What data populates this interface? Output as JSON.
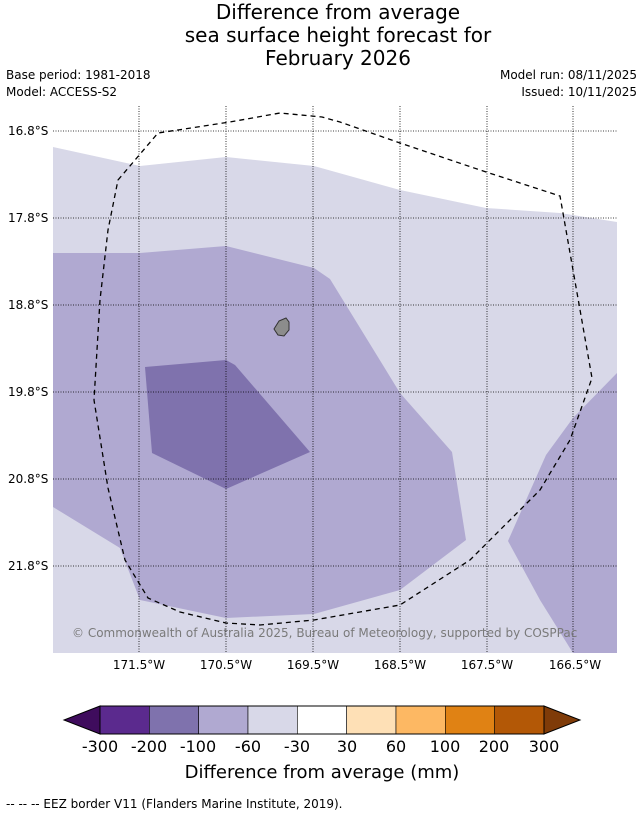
{
  "title": {
    "line1": "Difference from average",
    "line2": "sea surface height forecast for",
    "line3": "February 2026"
  },
  "meta": {
    "base_period": "Base period: 1981-2018",
    "model": "Model: ACCESS-S2",
    "model_run": "Model run: 08/11/2025",
    "issued": "Issued: 10/11/2025"
  },
  "map": {
    "latitudes": [
      "16.8°S",
      "17.8°S",
      "18.8°S",
      "19.8°S",
      "20.8°S",
      "21.8°S"
    ],
    "longitudes": [
      "171.5°W",
      "170.5°W",
      "169.5°W",
      "168.5°W",
      "167.5°W",
      "166.5°W"
    ],
    "copyright": "© Commonwealth of Australia 2025, Bureau of Meteorology, supported by COSPPac",
    "colors": {
      "class_-60_-30": "#d8d8e8",
      "class_-100_-60": "#b0a9d1",
      "class_-200_-100": "#7f72ad",
      "land": "#8c8c8c"
    }
  },
  "colorbar": {
    "ticks": [
      "-300",
      "-200",
      "-100",
      "-60",
      "-30",
      "30",
      "60",
      "100",
      "200",
      "300"
    ],
    "colors": [
      "#3f0c5d",
      "#5b2a8e",
      "#7f72ad",
      "#b0a9d1",
      "#d8d8e8",
      "#ffffff",
      "#fee0b6",
      "#fdb863",
      "#e08214",
      "#b35806",
      "#7f3b08"
    ],
    "label": "Difference from average (mm)"
  },
  "footnote": "--  --  -- EEZ border V11 (Flanders Marine Institute, 2019)."
}
